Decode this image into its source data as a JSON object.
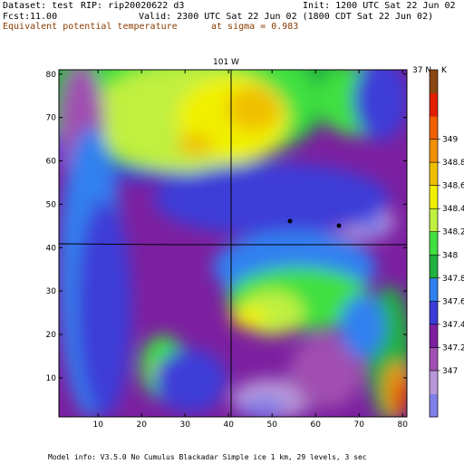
{
  "header": {
    "dataset": "Dataset: test",
    "rip": "RIP: rip20020622 d3",
    "init": "Init: 1200 UTC Sat 22 Jun 02",
    "fcst": "Fcst:",
    "fcst_value": "11.00",
    "valid": "Valid: 2300 UTC Sat 22 Jun 02 (1800 CDT Sat 22 Jun 02)",
    "field": "Equivalent potential temperature",
    "level": "at sigma = 0.983"
  },
  "map": {
    "meridian_label": "101 W",
    "parallel_label": "37 N",
    "unit": "K",
    "x_ticks": [
      "10",
      "20",
      "30",
      "40",
      "50",
      "60",
      "70",
      "80"
    ],
    "y_ticks": [
      "10",
      "20",
      "30",
      "40",
      "50",
      "60",
      "70",
      "80"
    ],
    "x_range": [
      1,
      81
    ],
    "y_range": [
      1,
      81
    ]
  },
  "colorbar": {
    "labels": [
      "347",
      "347.2",
      "347.4",
      "347.6",
      "347.8",
      "348",
      "348.2",
      "348.4",
      "348.6",
      "348.8",
      "349"
    ],
    "colors": [
      "#8080e8",
      "#b898d8",
      "#a050b0",
      "#7c20a0",
      "#3c3cd8",
      "#3080f0",
      "#20b040",
      "#40e040",
      "#c0f040",
      "#f0f000",
      "#f0c000",
      "#f09000",
      "#f06000",
      "#e02000",
      "#8b4513"
    ]
  },
  "footer": {
    "model_info": "Model info: V3.5.0  No Cumulus  Blackadar   Simple ice     1 km,   29 levels,     3 sec"
  }
}
